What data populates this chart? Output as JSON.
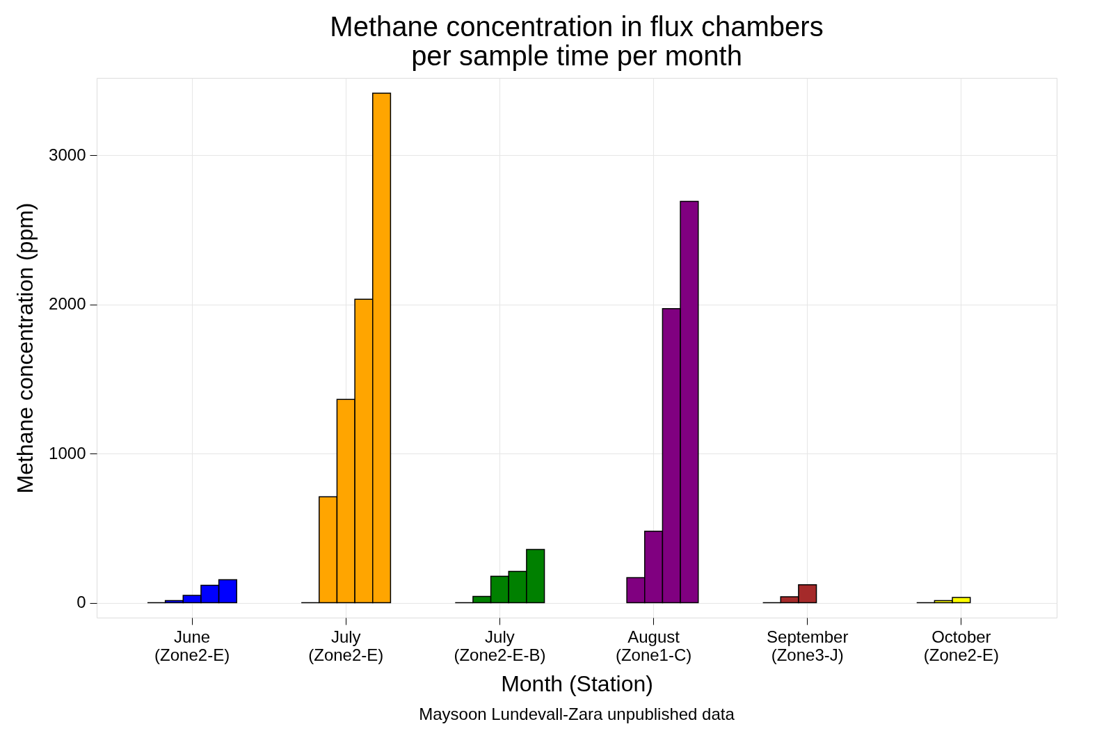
{
  "chart_data": {
    "type": "bar",
    "title": "Methane concentration in flux chambers\nper sample time per month",
    "xlabel": "Month (Station)",
    "ylabel": "Methane concentration (ppm)",
    "categories": [
      "June\n(Zone2-E)",
      "July\n(Zone2-E)",
      "July\n(Zone2-E-B)",
      "August\n(Zone1-C)",
      "September\n(Zone3-J)",
      "October\n(Zone2-E)"
    ],
    "series": [
      {
        "colors": [
          "#000000",
          "#000000",
          "#000000",
          "#800080",
          "#000000",
          "#000000"
        ],
        "values": [
          0,
          0,
          0,
          null,
          0,
          0
        ]
      },
      {
        "colors": [
          "#0000ff",
          "#ffa500",
          "#008000",
          "#800080",
          "#a52a2a",
          "#ffff00"
        ],
        "values": [
          14,
          711,
          42,
          168,
          40,
          14
        ]
      },
      {
        "colors": [
          "#0000ff",
          "#ffa500",
          "#008000",
          "#800080",
          "#a52a2a",
          "#ffff00"
        ],
        "values": [
          49,
          1364,
          177,
          480,
          121,
          35
        ]
      },
      {
        "colors": [
          "#0000ff",
          "#ffa500",
          "#008000",
          "#800080",
          "#a52a2a",
          "#ffff00"
        ],
        "values": [
          117,
          2035,
          210,
          1972,
          null,
          null
        ]
      },
      {
        "colors": [
          "#0000ff",
          "#ffa500",
          "#008000",
          "#800080",
          "#a52a2a",
          "#ffff00"
        ],
        "values": [
          154,
          3417,
          357,
          2692,
          null,
          null
        ]
      }
    ],
    "ylim": [
      -100,
      3520
    ],
    "yticks": [
      0,
      1000,
      2000,
      3000
    ],
    "grid": true,
    "annotations": [
      "Maysoon Lundevall-Zara unpublished data"
    ]
  }
}
